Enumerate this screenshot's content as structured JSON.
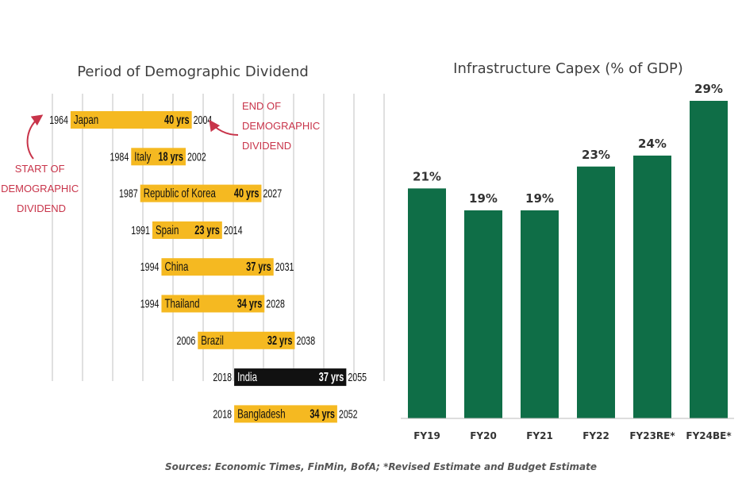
{
  "sources_note": "Sources: Economic Times, FinMin, BofA; *Revised Estimate and Budget Estimate",
  "colors": {
    "timeline_bar": "#f5b921",
    "timeline_highlight": "#111111",
    "annotation": "#c8344a",
    "capex_bar": "#0f6e47",
    "gridline": "#cfcfcf"
  },
  "chart_data": [
    {
      "type": "bar",
      "orientation": "horizontal-range",
      "title": "Period of Demographic Dividend",
      "annotations": {
        "start": "START OF DEMOGRAPHIC DIVIDEND",
        "end": "END OF DEMOGRAPHIC DIVIDEND"
      },
      "series": [
        {
          "country": "Japan",
          "start": 1964,
          "end": 2004,
          "duration_label": "40 yrs",
          "start_label": "1964",
          "end_label": "2004"
        },
        {
          "country": "Italy",
          "start": 1984,
          "end": 2002,
          "duration_label": "18 yrs",
          "start_label": "1984",
          "end_label": "2002"
        },
        {
          "country": "Republic of Korea",
          "start": 1987,
          "end": 2027,
          "duration_label": "40 yrs",
          "start_label": "1987",
          "end_label": "2027"
        },
        {
          "country": "Spain",
          "start": 1991,
          "end": 2014,
          "duration_label": "23 yrs",
          "start_label": "1991",
          "end_label": "2014"
        },
        {
          "country": "China",
          "start": 1994,
          "end": 2031,
          "duration_label": "37 yrs",
          "start_label": "1994",
          "end_label": "2031"
        },
        {
          "country": "Thailand",
          "start": 1994,
          "end": 2028,
          "duration_label": "34 yrs",
          "start_label": "1994",
          "end_label": "2028"
        },
        {
          "country": "Brazil",
          "start": 2006,
          "end": 2038,
          "duration_label": "32 yrs",
          "start_label": "2006",
          "end_label": "2038"
        },
        {
          "country": "India",
          "start": 2018,
          "end": 2055,
          "duration_label": "37 yrs",
          "start_label": "2018",
          "end_label": "2055",
          "highlight": true
        },
        {
          "country": "Bangladesh",
          "start": 2018,
          "end": 2052,
          "duration_label": "34 yrs",
          "start_label": "2018",
          "end_label": "2052"
        }
      ],
      "xlim": [
        1958,
        2068
      ],
      "grid": true
    },
    {
      "type": "bar",
      "title": "Infrastructure Capex (% of GDP)",
      "categories": [
        "FY19",
        "FY20",
        "FY21",
        "FY22",
        "FY23RE*",
        "FY24BE*"
      ],
      "values": [
        21,
        19,
        19,
        23,
        24,
        29
      ],
      "value_labels": [
        "21%",
        "19%",
        "19%",
        "23%",
        "24%",
        "29%"
      ],
      "ylim": [
        0,
        30
      ],
      "grid": false
    }
  ]
}
